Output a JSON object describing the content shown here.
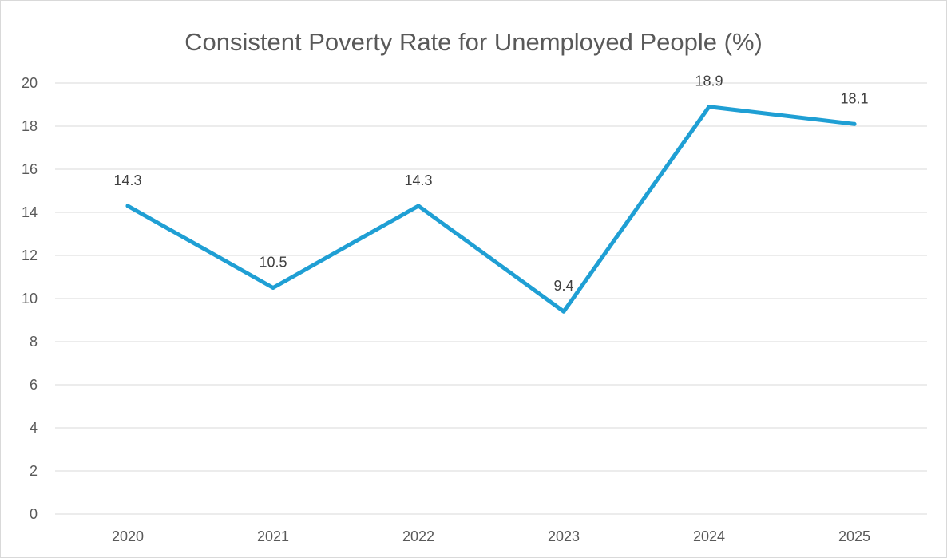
{
  "chart_data": {
    "type": "line",
    "title": "Consistent Poverty Rate for Unemployed People (%)",
    "xlabel": "",
    "ylabel": "",
    "categories": [
      "2020",
      "2021",
      "2022",
      "2023",
      "2024",
      "2025"
    ],
    "series": [
      {
        "values": [
          14.3,
          10.5,
          14.3,
          9.4,
          18.9,
          18.1
        ],
        "color": "#1f9fd4"
      }
    ],
    "data_labels": [
      "14.3",
      "10.5",
      "14.3",
      "9.4",
      "18.9",
      "18.1"
    ],
    "ylim": [
      0,
      20
    ],
    "yticks": [
      "0",
      "2",
      "4",
      "6",
      "8",
      "10",
      "12",
      "14",
      "16",
      "18",
      "20"
    ],
    "grid": true,
    "legend": "none",
    "colors": {
      "gridline": "#d9d9d9",
      "text": "#595959",
      "label": "#404040",
      "border": "#d9d9d9"
    }
  }
}
